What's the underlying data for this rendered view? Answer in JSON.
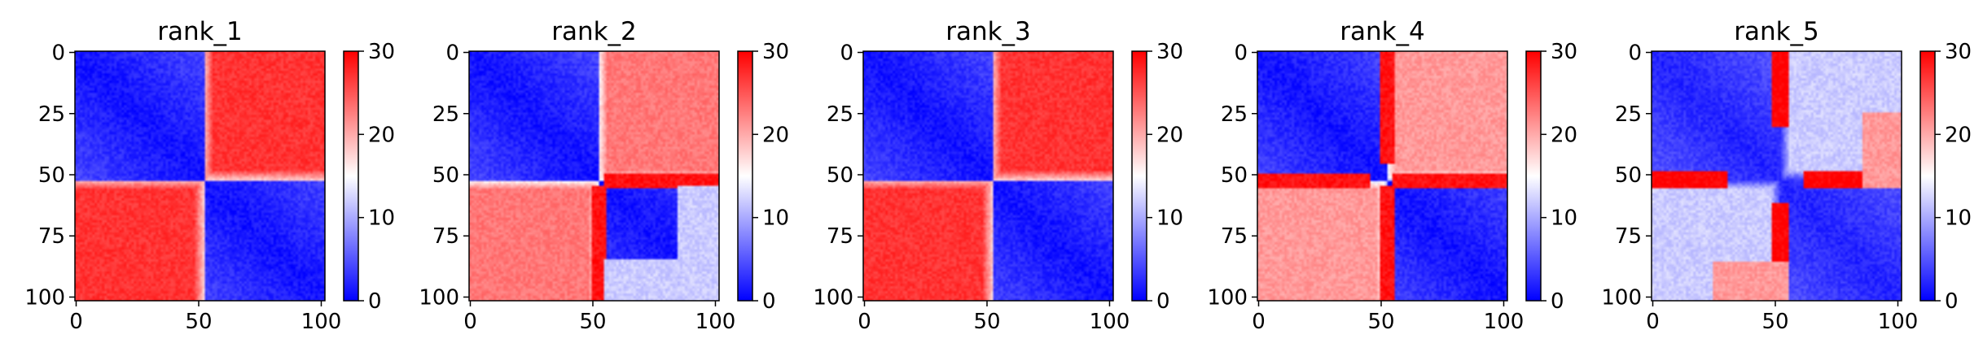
{
  "chart_data": [
    {
      "type": "heatmap",
      "title": "rank_1",
      "n": 102,
      "vmin": 0,
      "vmax": 30,
      "colormap": "bwr",
      "xticks": [
        0,
        50,
        100
      ],
      "yticks": [
        0,
        25,
        50,
        75,
        100
      ],
      "colorbar_ticks": [
        0,
        10,
        20,
        30
      ],
      "blocks": [
        {
          "start": 0,
          "end": 52
        },
        {
          "start": 52,
          "end": 101
        }
      ],
      "within_value": 1,
      "between_value": 27,
      "anomalies": []
    },
    {
      "type": "heatmap",
      "title": "rank_2",
      "n": 102,
      "vmin": 0,
      "vmax": 30,
      "colormap": "bwr",
      "xticks": [
        0,
        50,
        100
      ],
      "yticks": [
        0,
        25,
        50,
        75,
        100
      ],
      "colorbar_ticks": [
        0,
        10,
        20,
        30
      ],
      "blocks": [
        {
          "start": 0,
          "end": 52
        },
        {
          "start": 52,
          "end": 101
        }
      ],
      "within_value": 1,
      "between_value": 23,
      "anomalies": [
        {
          "row": [
            50,
            55
          ],
          "col": [
            55,
            101
          ],
          "value": 29
        },
        {
          "row": [
            85,
            101
          ],
          "col": [
            55,
            101
          ],
          "value": 12
        }
      ]
    },
    {
      "type": "heatmap",
      "title": "rank_3",
      "n": 102,
      "vmin": 0,
      "vmax": 30,
      "colormap": "bwr",
      "xticks": [
        0,
        50,
        100
      ],
      "yticks": [
        0,
        25,
        50,
        75,
        100
      ],
      "colorbar_ticks": [
        0,
        10,
        20,
        30
      ],
      "blocks": [
        {
          "start": 0,
          "end": 52
        },
        {
          "start": 52,
          "end": 101
        }
      ],
      "within_value": 1,
      "between_value": 27,
      "anomalies": []
    },
    {
      "type": "heatmap",
      "title": "rank_4",
      "n": 102,
      "vmin": 0,
      "vmax": 30,
      "colormap": "bwr",
      "xticks": [
        0,
        50,
        100
      ],
      "yticks": [
        0,
        25,
        50,
        75,
        100
      ],
      "colorbar_ticks": [
        0,
        10,
        20,
        30
      ],
      "blocks": [
        {
          "start": 0,
          "end": 52
        },
        {
          "start": 52,
          "end": 101
        }
      ],
      "within_value": 1,
      "between_value": 21,
      "anomalies": [
        {
          "row": [
            50,
            55
          ],
          "col": [
            55,
            101
          ],
          "value": 29
        },
        {
          "row": [
            50,
            55
          ],
          "col": [
            0,
            45
          ],
          "value": 29
        }
      ]
    },
    {
      "type": "heatmap",
      "title": "rank_5",
      "n": 102,
      "vmin": 0,
      "vmax": 30,
      "colormap": "bwr",
      "xticks": [
        0,
        50,
        100
      ],
      "yticks": [
        0,
        25,
        50,
        75,
        100
      ],
      "colorbar_ticks": [
        0,
        10,
        20,
        30
      ],
      "blocks": [
        {
          "start": 0,
          "end": 52
        },
        {
          "start": 52,
          "end": 101
        }
      ],
      "within_value": 2,
      "between_value": 12,
      "anomalies": [
        {
          "row": [
            49,
            55
          ],
          "col": [
            0,
            30
          ],
          "value": 30
        },
        {
          "row": [
            49,
            55
          ],
          "col": [
            62,
            101
          ],
          "value": 30
        },
        {
          "row": [
            86,
            101
          ],
          "col": [
            25,
            55
          ],
          "value": 21
        }
      ]
    }
  ]
}
